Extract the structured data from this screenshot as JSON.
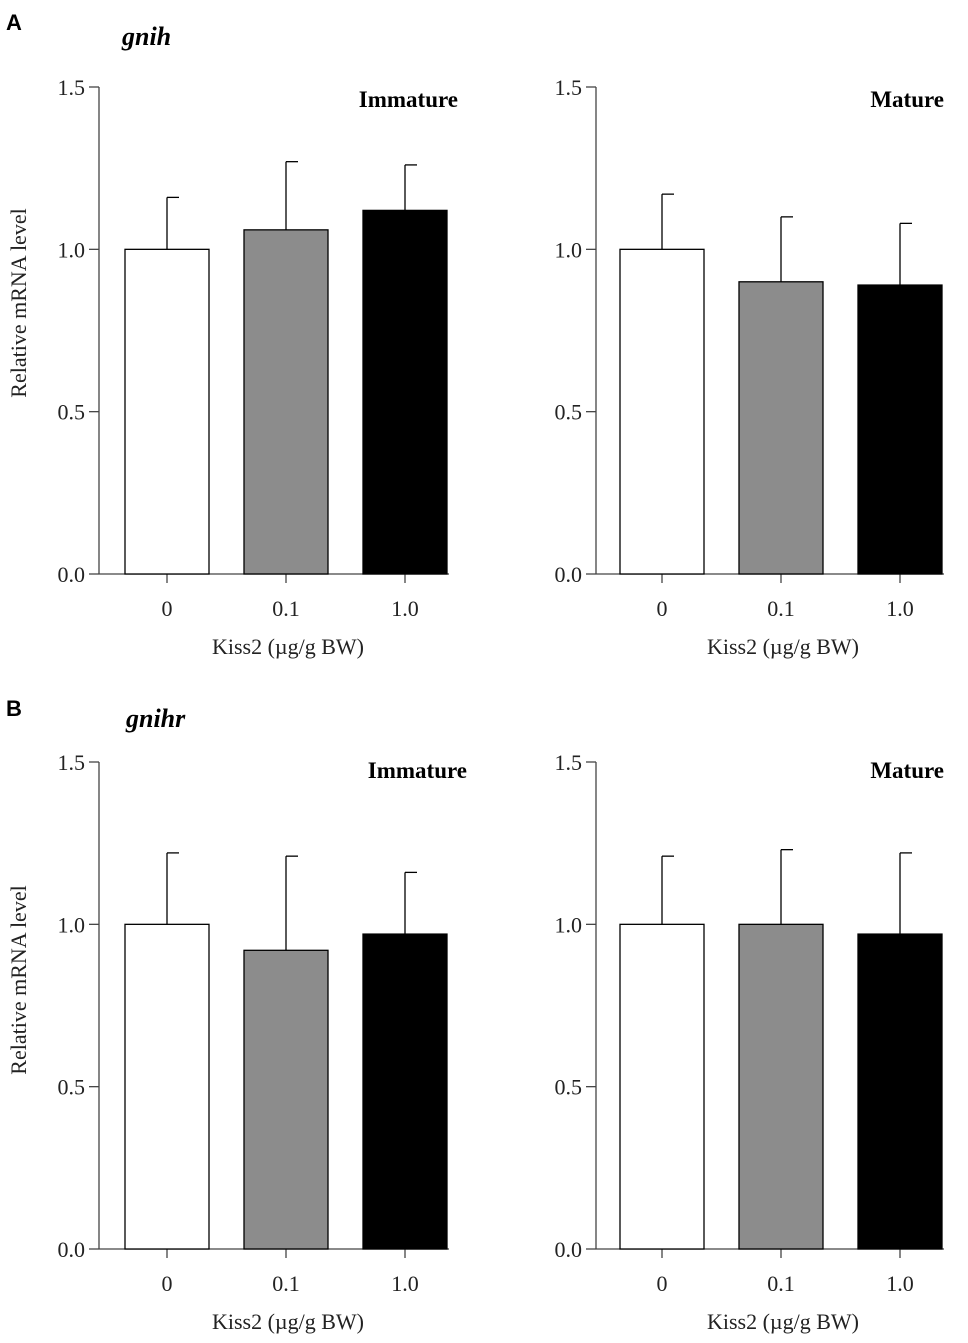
{
  "panels": [
    {
      "letter": "A",
      "gene": "gnih"
    },
    {
      "letter": "B",
      "gene": "gnihr"
    }
  ],
  "colors": {
    "0": "#ffffff",
    "0.1": "#8c8c8c",
    "1.0": "#000000",
    "axis": "#444444",
    "bar_edge": "#000000"
  },
  "chart_data": [
    {
      "type": "bar",
      "panel": "A",
      "gene": "gnih",
      "title": "Immature",
      "categories": [
        "0",
        "0.1",
        "1.0"
      ],
      "values": [
        1.0,
        1.06,
        1.12
      ],
      "errors": [
        0.16,
        0.21,
        0.14
      ],
      "xlabel": "Kiss2 (µg/g BW)",
      "ylabel": "Relative mRNA level",
      "ylim": [
        0,
        1.5
      ],
      "yticks": [
        "0.0",
        "0.5",
        "1.0",
        "1.5"
      ]
    },
    {
      "type": "bar",
      "panel": "A",
      "gene": "gnih",
      "title": "Mature",
      "categories": [
        "0",
        "0.1",
        "1.0"
      ],
      "values": [
        1.0,
        0.9,
        0.89
      ],
      "errors": [
        0.17,
        0.2,
        0.19
      ],
      "xlabel": "Kiss2 (µg/g BW)",
      "ylabel": "",
      "ylim": [
        0,
        1.5
      ],
      "yticks": [
        "0.0",
        "0.5",
        "1.0",
        "1.5"
      ]
    },
    {
      "type": "bar",
      "panel": "B",
      "gene": "gnihr",
      "title": "Immature",
      "categories": [
        "0",
        "0.1",
        "1.0"
      ],
      "values": [
        1.0,
        0.92,
        0.97
      ],
      "errors": [
        0.22,
        0.29,
        0.19
      ],
      "xlabel": "Kiss2 (µg/g BW)",
      "ylabel": "Relative mRNA level",
      "ylim": [
        0,
        1.5
      ],
      "yticks": [
        "0.0",
        "0.5",
        "1.0",
        "1.5"
      ]
    },
    {
      "type": "bar",
      "panel": "B",
      "gene": "gnihr",
      "title": "Mature",
      "categories": [
        "0",
        "0.1",
        "1.0"
      ],
      "values": [
        1.0,
        1.0,
        0.97
      ],
      "errors": [
        0.21,
        0.23,
        0.25
      ],
      "xlabel": "Kiss2 (µg/g BW)",
      "ylabel": "",
      "ylim": [
        0,
        1.5
      ],
      "yticks": [
        "0.0",
        "0.5",
        "1.0",
        "1.5"
      ]
    }
  ]
}
